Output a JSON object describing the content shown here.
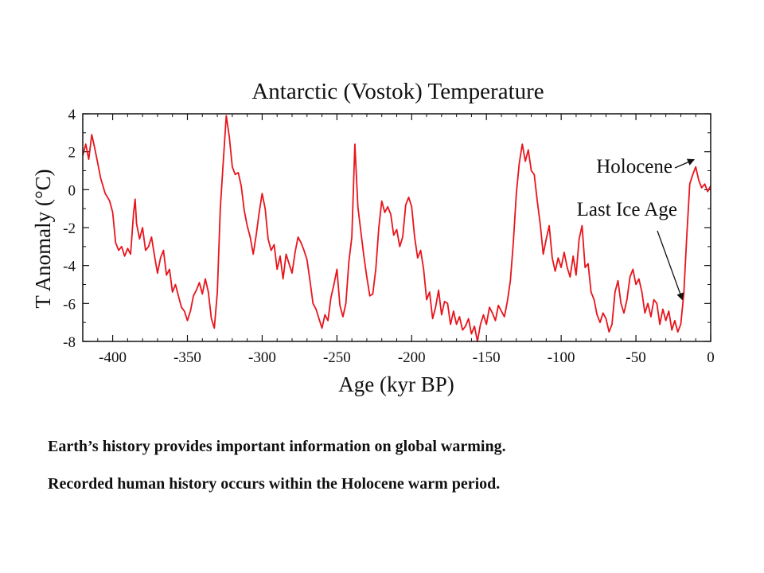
{
  "chart_data": {
    "type": "line",
    "title": "Antarctic (Vostok) Temperature",
    "xlabel": "Age (kyr BP)",
    "ylabel": "T Anomaly (°C)",
    "xlim": [
      -420,
      0
    ],
    "ylim": [
      -8,
      4
    ],
    "x_ticks": [
      -400,
      -350,
      -300,
      -250,
      -200,
      -150,
      -100,
      -50,
      0
    ],
    "y_ticks": [
      -8,
      -6,
      -4,
      -2,
      0,
      2,
      4
    ],
    "line_color": "#e8141c",
    "series": [
      {
        "x": [
          -420,
          -418,
          -416,
          -414,
          -412,
          -410,
          -408,
          -405,
          -402,
          -400,
          -398,
          -396,
          -394,
          -392,
          -390,
          -388,
          -386,
          -385,
          -384,
          -383,
          -382,
          -380,
          -378,
          -376,
          -374,
          -372,
          -370,
          -368,
          -366,
          -364,
          -362,
          -360,
          -358,
          -356,
          -354,
          -352,
          -350,
          -348,
          -346,
          -344,
          -342,
          -340,
          -338,
          -336,
          -334,
          -332,
          -330,
          -328,
          -326,
          -324,
          -322,
          -320,
          -318,
          -316,
          -314,
          -312,
          -310,
          -308,
          -306,
          -304,
          -302,
          -300,
          -298,
          -296,
          -294,
          -292,
          -290,
          -288,
          -286,
          -284,
          -282,
          -280,
          -278,
          -276,
          -274,
          -272,
          -270,
          -268,
          -266,
          -264,
          -262,
          -260,
          -258,
          -256,
          -254,
          -252,
          -250,
          -248,
          -246,
          -244,
          -242,
          -240,
          -238,
          -236,
          -234,
          -232,
          -230,
          -228,
          -226,
          -224,
          -222,
          -220,
          -218,
          -216,
          -214,
          -212,
          -210,
          -208,
          -206,
          -204,
          -202,
          -200,
          -198,
          -196,
          -194,
          -192,
          -190,
          -188,
          -186,
          -184,
          -182,
          -180,
          -178,
          -176,
          -174,
          -172,
          -170,
          -168,
          -166,
          -164,
          -162,
          -160,
          -158,
          -156,
          -154,
          -152,
          -150,
          -148,
          -146,
          -144,
          -142,
          -140,
          -138,
          -136,
          -134,
          -132,
          -130,
          -128,
          -126,
          -124,
          -122,
          -120,
          -118,
          -116,
          -114,
          -112,
          -110,
          -108,
          -106,
          -104,
          -102,
          -100,
          -98,
          -96,
          -94,
          -92,
          -90,
          -88,
          -86,
          -84,
          -82,
          -80,
          -78,
          -76,
          -74,
          -72,
          -70,
          -68,
          -66,
          -64,
          -62,
          -60,
          -58,
          -56,
          -54,
          -52,
          -50,
          -48,
          -46,
          -44,
          -42,
          -40,
          -38,
          -36,
          -34,
          -32,
          -30,
          -28,
          -26,
          -24,
          -22,
          -20,
          -18,
          -16,
          -14,
          -12,
          -10,
          -8,
          -6,
          -4,
          -2,
          0
        ],
        "y": [
          1.8,
          2.4,
          1.6,
          2.9,
          2.2,
          1.4,
          0.6,
          -0.2,
          -0.6,
          -1.2,
          -2.8,
          -3.2,
          -3.0,
          -3.5,
          -3.1,
          -3.4,
          -1.2,
          -0.5,
          -1.8,
          -2.2,
          -2.6,
          -2.0,
          -3.2,
          -3.0,
          -2.5,
          -3.5,
          -4.4,
          -3.6,
          -3.2,
          -4.5,
          -4.2,
          -5.4,
          -5.0,
          -5.6,
          -6.2,
          -6.4,
          -6.9,
          -6.4,
          -5.6,
          -5.3,
          -4.9,
          -5.5,
          -4.7,
          -5.4,
          -6.8,
          -7.3,
          -5.4,
          -1.0,
          1.5,
          3.9,
          2.8,
          1.2,
          0.8,
          0.9,
          0.2,
          -1.1,
          -1.9,
          -2.5,
          -3.4,
          -2.4,
          -1.2,
          -0.2,
          -1.0,
          -2.6,
          -3.2,
          -2.9,
          -4.2,
          -3.5,
          -4.7,
          -3.4,
          -3.9,
          -4.4,
          -3.3,
          -2.5,
          -2.8,
          -3.2,
          -3.7,
          -4.8,
          -6.0,
          -6.3,
          -6.8,
          -7.3,
          -6.6,
          -6.9,
          -5.7,
          -5.0,
          -4.2,
          -6.1,
          -6.7,
          -6.0,
          -3.8,
          -2.5,
          2.4,
          -0.9,
          -2.2,
          -3.5,
          -4.6,
          -5.6,
          -5.5,
          -4.2,
          -2.0,
          -0.6,
          -1.2,
          -0.9,
          -1.3,
          -2.4,
          -2.1,
          -3.0,
          -2.5,
          -0.8,
          -0.4,
          -0.9,
          -2.5,
          -3.6,
          -3.2,
          -4.2,
          -5.8,
          -5.4,
          -6.8,
          -6.2,
          -5.3,
          -6.6,
          -5.9,
          -6.0,
          -7.1,
          -6.4,
          -7.1,
          -6.7,
          -7.4,
          -7.2,
          -6.8,
          -7.6,
          -7.2,
          -8.0,
          -7.1,
          -6.6,
          -7.1,
          -6.2,
          -6.5,
          -6.9,
          -6.1,
          -6.4,
          -6.7,
          -5.9,
          -4.8,
          -2.8,
          -0.2,
          1.4,
          2.4,
          1.5,
          2.1,
          1.0,
          0.8,
          -0.6,
          -1.8,
          -3.4,
          -2.6,
          -1.9,
          -3.6,
          -4.3,
          -3.6,
          -4.1,
          -3.3,
          -4.1,
          -4.6,
          -3.5,
          -4.5,
          -2.6,
          -1.9,
          -4.1,
          -3.9,
          -5.4,
          -5.8,
          -6.6,
          -7.0,
          -6.5,
          -6.8,
          -7.5,
          -7.1,
          -5.4,
          -4.8,
          -6.0,
          -6.5,
          -5.8,
          -4.6,
          -4.2,
          -5.0,
          -4.7,
          -5.4,
          -6.5,
          -6.0,
          -6.7,
          -5.8,
          -6.0,
          -7.1,
          -6.3,
          -6.9,
          -6.4,
          -7.4,
          -6.9,
          -7.5,
          -7.1,
          -5.5,
          -2.5,
          0.3,
          0.8,
          1.2,
          0.5,
          0.1,
          0.3,
          -0.1,
          0.2
        ]
      }
    ],
    "annotations": [
      {
        "label": "Holocene",
        "x": -10,
        "y": 1.0
      },
      {
        "label": "Last Ice Age",
        "x": -20,
        "y": -5.8
      }
    ]
  },
  "caption": {
    "line1": "Earth’s history provides important information on global warming.",
    "line2": "Recorded human history occurs within the Holocene warm period."
  }
}
